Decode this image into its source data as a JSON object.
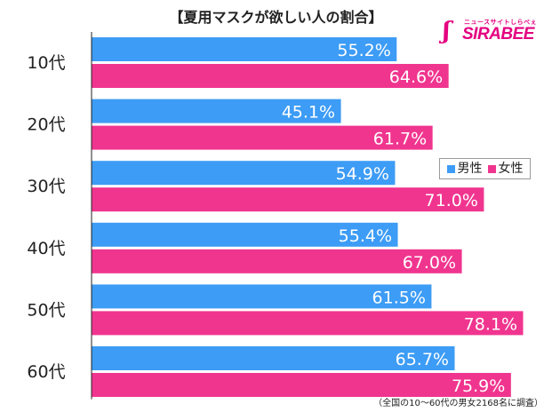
{
  "chart_data": {
    "type": "bar",
    "orientation": "horizontal",
    "title": "【夏用マスクが欲しい人の割合】",
    "categories": [
      "10代",
      "20代",
      "30代",
      "40代",
      "50代",
      "60代"
    ],
    "series": [
      {
        "name": "男性",
        "color": "#3d9cf5",
        "values": [
          55.2,
          45.1,
          54.9,
          55.4,
          61.5,
          65.7
        ],
        "labels": [
          "55.2%",
          "45.1%",
          "54.9%",
          "55.4%",
          "61.5%",
          "65.7%"
        ]
      },
      {
        "name": "女性",
        "color": "#f0358f",
        "values": [
          64.6,
          61.7,
          71.0,
          67.0,
          78.1,
          75.9
        ],
        "labels": [
          "64.6%",
          "61.7%",
          "71.0%",
          "67.0%",
          "78.1%",
          "75.9%"
        ]
      }
    ],
    "xlim": [
      0,
      100
    ],
    "grid": false,
    "legend": "right-middle",
    "footnote": "（全国の10〜60代の男女2168名に調査）"
  },
  "logo": {
    "sub": "ニュースサイトしらべぇ",
    "main": "SIRABEE"
  }
}
